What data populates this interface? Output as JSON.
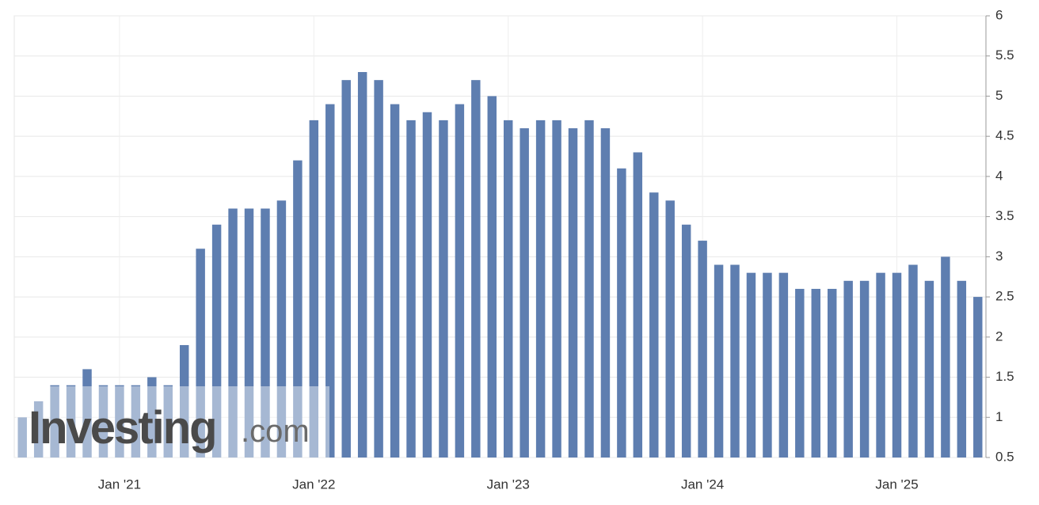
{
  "chart_data": {
    "type": "bar",
    "categories": [
      null,
      null,
      null,
      null,
      null,
      null,
      "Jan '21",
      null,
      null,
      null,
      null,
      null,
      null,
      null,
      null,
      null,
      null,
      null,
      "Jan '22",
      null,
      null,
      null,
      null,
      null,
      null,
      null,
      null,
      null,
      null,
      null,
      "Jan '23",
      null,
      null,
      null,
      null,
      null,
      null,
      null,
      null,
      null,
      null,
      null,
      "Jan '24",
      null,
      null,
      null,
      null,
      null,
      null,
      null,
      null,
      null,
      null,
      null,
      "Jan '25",
      null,
      null,
      null,
      null,
      null
    ],
    "values": [
      1.0,
      1.2,
      1.4,
      1.4,
      1.6,
      1.4,
      1.4,
      1.4,
      1.5,
      1.4,
      1.9,
      3.1,
      3.4,
      3.6,
      3.6,
      3.6,
      3.7,
      4.2,
      4.7,
      4.9,
      5.2,
      5.3,
      5.2,
      4.9,
      4.7,
      4.8,
      4.7,
      4.9,
      5.2,
      5.0,
      4.7,
      4.6,
      4.7,
      4.7,
      4.6,
      4.7,
      4.6,
      4.1,
      4.3,
      3.8,
      3.7,
      3.4,
      3.2,
      2.9,
      2.9,
      2.8,
      2.8,
      2.8,
      2.6,
      2.6,
      2.6,
      2.7,
      2.7,
      2.8,
      2.8,
      2.9,
      2.7,
      3.0,
      2.7,
      2.5
    ],
    "color": "#5e7eb0",
    "ylim": [
      0.5,
      6
    ],
    "yticks": [
      0.5,
      1,
      1.5,
      2,
      2.5,
      3,
      3.5,
      4,
      4.5,
      5,
      5.5,
      6
    ],
    "y_axis_side": "right",
    "grid": true,
    "watermark": {
      "brand": "Investing",
      "suffix": ".com"
    }
  }
}
